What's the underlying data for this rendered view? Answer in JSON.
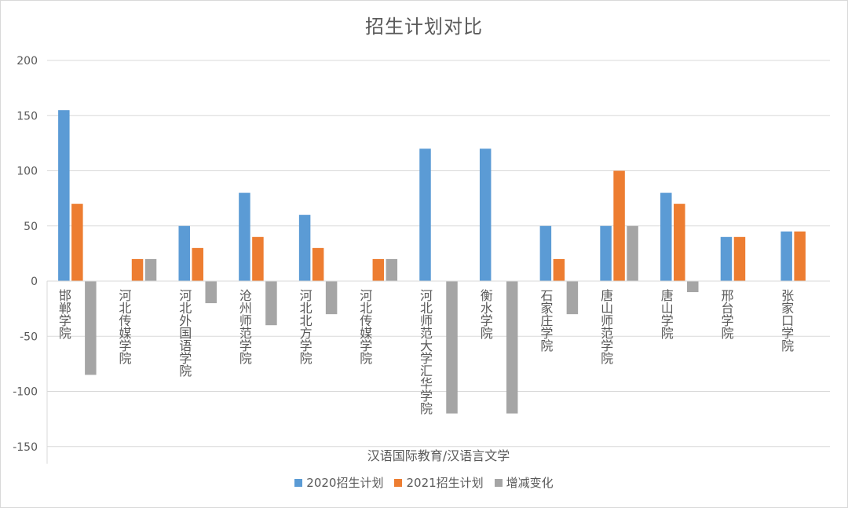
{
  "chart_data": {
    "type": "bar",
    "title": "招生计划对比",
    "xlabel": "汉语国际教育/汉语言文学",
    "ylabel": "",
    "ylim": [
      -150,
      200
    ],
    "yticks": [
      200,
      150,
      100,
      50,
      0,
      -50,
      -100,
      -150
    ],
    "categories": [
      "邯郸学院",
      "河北传媒学院",
      "河北外国语学院",
      "沧州师范学院",
      "河北北方学院",
      "河北传媒学院",
      "河北师范大学汇华学院",
      "衡水学院",
      "石家庄学院",
      "唐山师范学院",
      "唐山学院",
      "邢台学院",
      "张家口学院"
    ],
    "series": [
      {
        "name": "2020招生计划",
        "color": "#5b9bd5",
        "values": [
          155,
          0,
          50,
          80,
          60,
          0,
          120,
          120,
          50,
          50,
          80,
          40,
          45
        ]
      },
      {
        "name": "2021招生计划",
        "color": "#ed7d31",
        "values": [
          70,
          20,
          30,
          40,
          30,
          20,
          0,
          0,
          20,
          100,
          70,
          40,
          45
        ]
      },
      {
        "name": "增减变化",
        "color": "#a5a5a5",
        "values": [
          -85,
          20,
          -20,
          -40,
          -30,
          20,
          -120,
          -120,
          -30,
          50,
          -10,
          0,
          0
        ]
      }
    ],
    "grid": true,
    "legend_position": "bottom"
  }
}
